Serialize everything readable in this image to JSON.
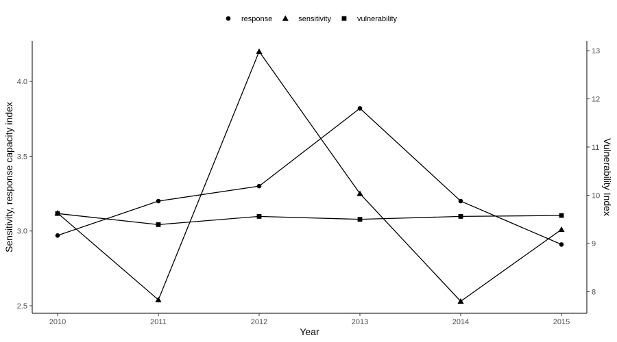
{
  "chart_data": {
    "type": "line",
    "x": [
      2010,
      2011,
      2012,
      2013,
      2014,
      2015
    ],
    "xlabel": "Year",
    "ylabel": "Sensitivity, response capacity index",
    "y2label": "Vulnerability Index",
    "ylim": [
      2.45,
      4.27
    ],
    "y2lim": [
      7.55,
      13.2
    ],
    "yticks": [
      2.5,
      3.0,
      3.5,
      4.0
    ],
    "ytick_labels": [
      "2.5",
      "3.0",
      "3.5",
      "4.0"
    ],
    "y2ticks": [
      8,
      9,
      10,
      11,
      12,
      13
    ],
    "y2tick_labels": [
      "8",
      "9",
      "10",
      "11",
      "12",
      "13"
    ],
    "xtick_labels": [
      "2010",
      "2011",
      "2012",
      "2013",
      "2014",
      "2015"
    ],
    "legend_position": "top",
    "grid": false,
    "line_color": "#000000",
    "series": [
      {
        "name": "response",
        "marker": "circle",
        "axis": "left",
        "values": [
          2.97,
          3.2,
          3.3,
          3.82,
          3.2,
          2.91
        ]
      },
      {
        "name": "sensitivity",
        "marker": "triangle",
        "axis": "left",
        "values": [
          3.12,
          2.54,
          4.2,
          3.25,
          2.53,
          3.01
        ]
      },
      {
        "name": "vulnerability",
        "marker": "square",
        "axis": "right",
        "values": [
          9.62,
          9.39,
          9.56,
          9.5,
          9.56,
          9.58
        ]
      }
    ]
  }
}
